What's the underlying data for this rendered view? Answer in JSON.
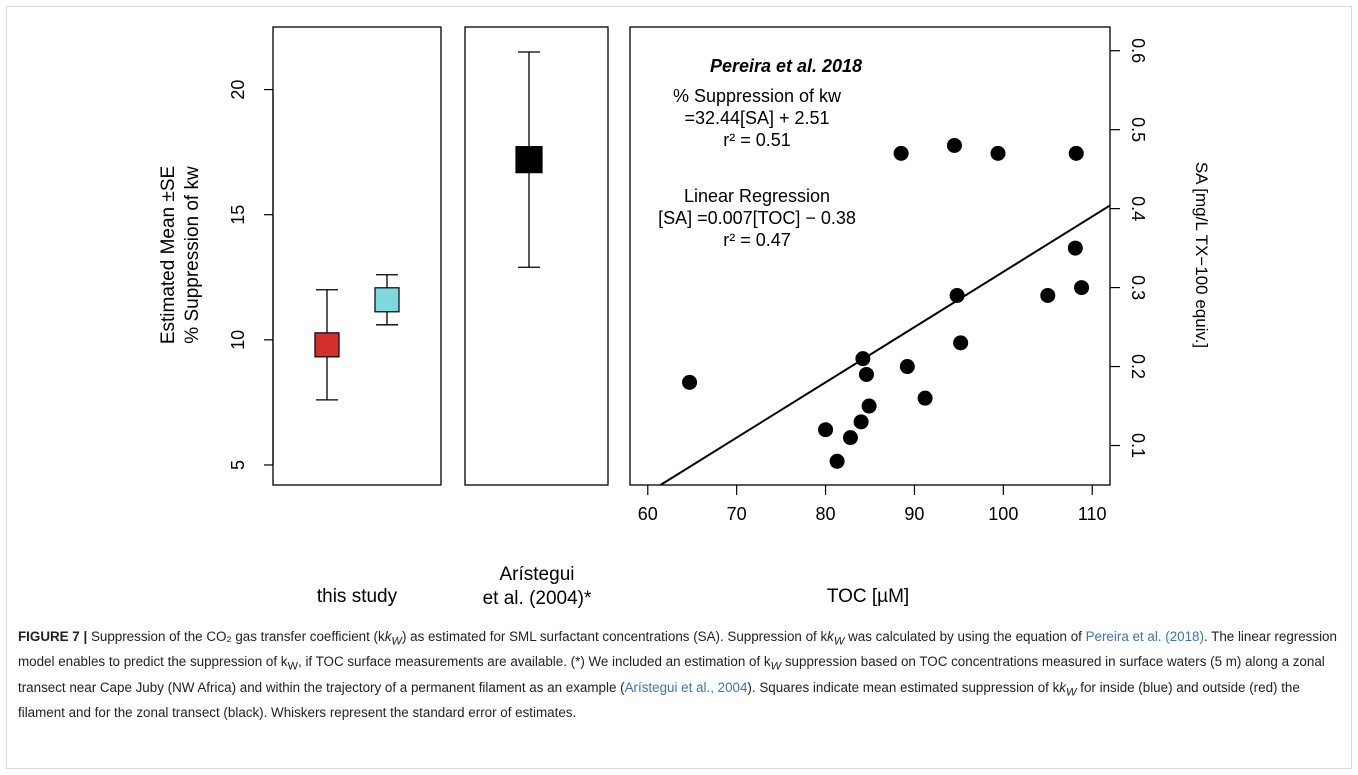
{
  "chart_data": [
    {
      "type": "scatter",
      "panel": "this study",
      "ylabel_line1": "Estimated Mean ±SE",
      "ylabel_line2": "% Suppression of kw",
      "ylim": [
        4.2,
        22.5
      ],
      "yticks": [
        5,
        10,
        15,
        20
      ],
      "xlabel": "this study",
      "points": [
        {
          "group": "outside",
          "mean": 9.8,
          "se_low": 7.6,
          "se_high": 12.0,
          "color": "#d42f2a"
        },
        {
          "group": "inside",
          "mean": 11.6,
          "se_low": 10.6,
          "se_high": 12.6,
          "color": "#7dd8e0"
        }
      ]
    },
    {
      "type": "scatter",
      "panel": "Arístegui",
      "xlabel_line1": "Arístegui",
      "xlabel_line2": "et al. (2004)*",
      "points": [
        {
          "group": "zonal transect",
          "mean": 17.2,
          "se_low": 12.9,
          "se_high": 21.5,
          "color": "#000000"
        }
      ]
    },
    {
      "type": "scatter",
      "panel": "regression",
      "xlabel": "TOC [µM]",
      "ylabel_right": "SA [mg/L TX−100 equiv.]",
      "xlim": [
        58,
        112
      ],
      "ylim": [
        0.05,
        0.63
      ],
      "xticks": [
        60,
        70,
        80,
        90,
        100,
        110
      ],
      "yticks": [
        0.1,
        0.2,
        0.3,
        0.4,
        0.5,
        0.6
      ],
      "annotation_title": "Pereira et al. 2018",
      "annotation_line1": "% Suppression of kw",
      "annotation_line2": "=32.44[SA] + 2.51",
      "annotation_line3": "r² = 0.51",
      "regression_label": "Linear Regression",
      "regression_eq": "[SA] =0.007[TOC] − 0.38",
      "regression_r2": "r² = 0.47",
      "regression": {
        "slope": 0.007,
        "intercept": -0.38
      },
      "x": [
        64.7,
        80.0,
        81.3,
        82.8,
        84.0,
        84.2,
        84.6,
        84.9,
        88.5,
        89.2,
        91.2,
        94.5,
        94.8,
        95.2,
        99.4,
        105.0,
        108.1,
        108.2,
        108.8
      ],
      "y": [
        0.18,
        0.12,
        0.08,
        0.11,
        0.13,
        0.21,
        0.19,
        0.15,
        0.47,
        0.2,
        0.16,
        0.48,
        0.29,
        0.23,
        0.47,
        0.29,
        0.35,
        0.47,
        0.3
      ]
    }
  ],
  "caption": {
    "label": "FIGURE 7 |",
    "text1": " Suppression of the CO₂ gas transfer coefficient (k",
    "sub_w1": "W",
    "text2": ") as estimated for SML surfactant concentrations (SA). Suppression of k",
    "sub_w2": "W",
    "text3": " was calculated by using the equation of ",
    "ref1": "Pereira et al. (2018)",
    "text4": ". The linear regression model enables to predict the suppression of k",
    "sub_w3": "W",
    "text5": ", if TOC surface measurements are available. (*) We included an estimation of k",
    "sub_w4": "W",
    "text6": " suppression based on TOC concentrations measured in surface waters (5 m) along a zonal transect near Cape Juby (NW Africa) and within the trajectory of a permanent filament as an example (",
    "ref2": "Arístegui et al., 2004",
    "text7": "). Squares indicate mean estimated suppression of k",
    "sub_w5": "W",
    "text8": " for inside (blue) and outside (red) the filament and for the zonal transect (black). Whiskers represent the standard error of estimates."
  }
}
